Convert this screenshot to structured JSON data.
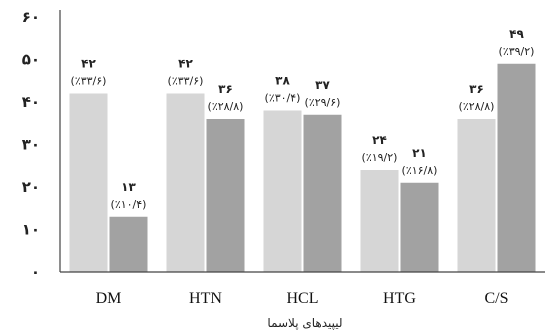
{
  "chart_data": {
    "type": "bar",
    "categories": [
      "DM",
      "HTN",
      "HCL",
      "HTG",
      "C/S"
    ],
    "series": [
      {
        "values": [
          42,
          42,
          38,
          24,
          36
        ],
        "labels": [
          "۴۲",
          "۴۲",
          "۳۸",
          "۲۴",
          "۳۶"
        ],
        "percents": [
          "(٪۳۳/۶)",
          "(٪۳۳/۶)",
          "(٪۳۰/۴)",
          "(٪۱۹/۲)",
          "(٪۲۸/۸)"
        ],
        "color": "#d6d6d6"
      },
      {
        "values": [
          13,
          36,
          37,
          21,
          49
        ],
        "labels": [
          "۱۳",
          "۳۶",
          "۳۷",
          "۲۱",
          "۴۹"
        ],
        "percents": [
          "(٪۱۰/۴)",
          "(٪۲۸/۸)",
          "(٪۲۹/۶)",
          "(٪۱۶/۸)",
          "(٪۳۹/۲)"
        ],
        "color": "#a2a2a2"
      }
    ],
    "yticks": [
      0,
      10,
      20,
      30,
      40,
      50,
      60
    ],
    "ytick_labels": [
      "۰",
      "۱۰",
      "۲۰",
      "۳۰",
      "۴۰",
      "۵۰",
      "۶۰"
    ],
    "ylim": [
      0,
      60
    ],
    "xlabel": "لیپیدهای پلاسما",
    "ylabel": "",
    "grid": false
  }
}
